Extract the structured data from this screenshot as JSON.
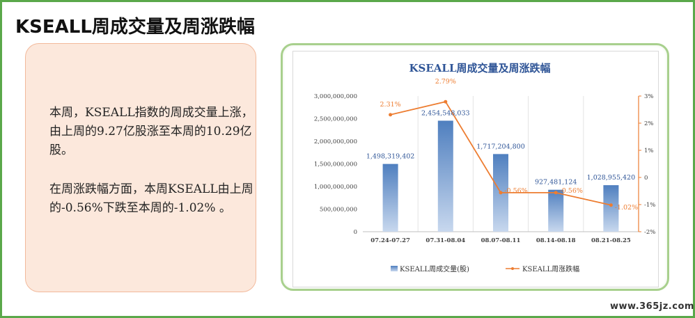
{
  "page": {
    "title": "KSEALL周成交量及周涨跌幅",
    "watermark": "www.365jz.com"
  },
  "commentary": {
    "paragraph1": "本周，KSEALL指数的周成交量上涨，由上周的9.27亿股涨至本周的10.29亿股。",
    "paragraph2": "在周涨跌幅方面，本周KSEALL由上周的-0.56%下跌至本周的-1.02% 。"
  },
  "colors": {
    "bar": "#4f7fbf",
    "bar_light": "#c8d8ee",
    "line": "#ed7d31",
    "bar_label": "#2f5597",
    "line_label": "#ed7d31"
  },
  "chart_data": {
    "type": "bar+line",
    "title": "KSEALL周成交量及周涨跌幅",
    "categories": [
      "07.24-07.27",
      "07.31-08.04",
      "08.07-08.11",
      "08.14-08.18",
      "08.21-08.25"
    ],
    "series": [
      {
        "name": "KSEALL周成交量(股)",
        "type": "bar",
        "axis": "left",
        "values": [
          1498319402,
          2454548033,
          1717204800,
          927481124,
          1028955420
        ],
        "labels": [
          "1,498,319,402",
          "2,454,548,033",
          "1,717,204,800",
          "927,481,124",
          "1,028,955,420"
        ]
      },
      {
        "name": "KSEALL周涨跌幅",
        "type": "line",
        "axis": "right",
        "values": [
          2.31,
          2.79,
          -0.56,
          -0.56,
          -1.02
        ],
        "labels": [
          "2.31%",
          "2.79%",
          "-0.56%",
          "-0.56%",
          "-1.02%"
        ]
      }
    ],
    "left_axis": {
      "min": 0,
      "max": 3000000000,
      "ticks": [
        "0",
        "500,000,000",
        "1,000,000,000",
        "1,500,000,000",
        "2,000,000,000",
        "2,500,000,000",
        "3,000,000,000"
      ]
    },
    "right_axis": {
      "min": -2,
      "max": 3,
      "ticks": [
        "-2%",
        "-1%",
        "0",
        "1%",
        "2%",
        "3%"
      ]
    },
    "grid": "vertical category separators",
    "legend": "bottom"
  }
}
